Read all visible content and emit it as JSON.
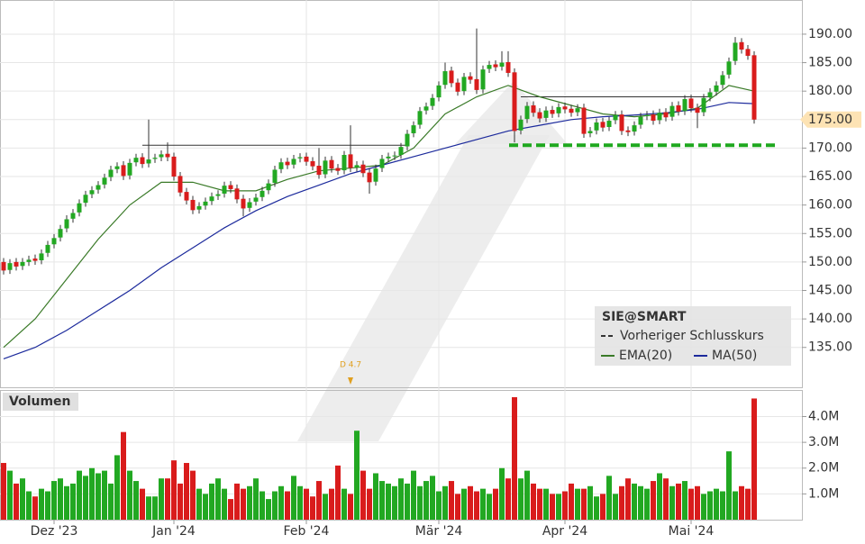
{
  "chart_data": {
    "type": "candlestick",
    "title": "SIE@SMART",
    "categories": [
      null,
      null,
      null,
      null,
      null,
      null,
      null,
      null,
      "Dez '23",
      null,
      null,
      null,
      null,
      null,
      null,
      null,
      null,
      null,
      null,
      null,
      null,
      null,
      null,
      null,
      null,
      null,
      null,
      "Jan '24",
      null,
      null,
      null,
      null,
      null,
      null,
      null,
      null,
      null,
      null,
      null,
      null,
      null,
      null,
      null,
      null,
      null,
      null,
      null,
      null,
      "Feb '24",
      null,
      null,
      null,
      null,
      null,
      null,
      null,
      null,
      null,
      null,
      null,
      null,
      null,
      null,
      null,
      null,
      null,
      null,
      null,
      null,
      "Mär '24",
      null,
      null,
      null,
      null,
      null,
      null,
      null,
      null,
      null,
      null,
      null,
      null,
      null,
      null,
      null,
      null,
      null,
      null,
      null,
      "Apr '24",
      null,
      null,
      null,
      null,
      null,
      null,
      null,
      null,
      null,
      null,
      null,
      null,
      null,
      null,
      null,
      null,
      null,
      null,
      null,
      "Mai '24",
      null,
      null,
      null,
      null,
      null,
      null,
      null,
      null,
      null,
      null
    ],
    "open": [
      150.0,
      148.6,
      150.0,
      149.3,
      150.0,
      150.6,
      150.3,
      151.6,
      153.1,
      154.3,
      155.9,
      157.6,
      158.7,
      160.4,
      161.9,
      162.7,
      163.6,
      164.9,
      166.3,
      167.0,
      165.2,
      167.5,
      168.4,
      167.3,
      168.1,
      168.4,
      169.0,
      168.5,
      165.1,
      162.3,
      160.9,
      159.2,
      159.9,
      160.7,
      161.6,
      162.0,
      163.5,
      162.9,
      161.1,
      159.5,
      160.6,
      161.4,
      162.6,
      163.9,
      166.3,
      167.6,
      167.1,
      168.2,
      168.5,
      167.7,
      166.9,
      165.4,
      167.9,
      166.5,
      166.1,
      168.9,
      166.6,
      167.1,
      165.7,
      164.1,
      166.5,
      168.2,
      168.6,
      168.8,
      170.3,
      172.6,
      174.1,
      176.6,
      177.4,
      178.9,
      181.1,
      183.6,
      181.5,
      180.0,
      182.6,
      182.1,
      180.3,
      183.9,
      184.7,
      184.3,
      185.1,
      183.3,
      173.1,
      175.1,
      177.5,
      176.3,
      175.3,
      176.7,
      176.1,
      177.3,
      176.9,
      176.3,
      177.1,
      172.6,
      173.1,
      174.6,
      173.7,
      174.9,
      175.9,
      173.1,
      172.9,
      174.1,
      175.6,
      175.9,
      174.9,
      176.3,
      175.5,
      177.5,
      176.5,
      178.7,
      177.1,
      176.3,
      178.9,
      179.9,
      181.1,
      182.9,
      185.3,
      188.6,
      187.4,
      186.3
    ],
    "high": [
      150.7,
      150.5,
      150.7,
      150.7,
      151.1,
      151.3,
      152.2,
      153.7,
      154.9,
      156.5,
      158.2,
      159.3,
      161.0,
      162.5,
      163.3,
      164.2,
      165.5,
      166.9,
      167.5,
      167.7,
      168.1,
      169.0,
      169.1,
      175.0,
      169.0,
      169.6,
      171.0,
      169.2,
      165.8,
      163.0,
      161.6,
      160.5,
      161.3,
      162.2,
      162.6,
      164.1,
      164.2,
      163.6,
      161.8,
      161.2,
      162.0,
      163.2,
      164.5,
      166.9,
      168.2,
      168.3,
      168.8,
      169.1,
      169.2,
      168.4,
      170.0,
      168.5,
      168.6,
      167.2,
      169.5,
      174.0,
      167.7,
      167.8,
      166.4,
      167.1,
      168.8,
      169.2,
      169.4,
      170.9,
      173.2,
      174.7,
      177.2,
      178.0,
      179.5,
      181.7,
      185.0,
      184.3,
      182.2,
      183.2,
      183.3,
      191.0,
      184.5,
      185.3,
      185.4,
      187.0,
      187.0,
      184.0,
      175.7,
      178.1,
      178.2,
      177.0,
      177.3,
      177.4,
      177.9,
      178.0,
      177.6,
      177.7,
      177.8,
      173.7,
      175.2,
      175.3,
      175.5,
      176.5,
      176.6,
      173.8,
      174.7,
      176.2,
      176.5,
      176.6,
      176.9,
      177.0,
      178.1,
      178.2,
      179.3,
      179.4,
      177.8,
      179.5,
      180.5,
      181.7,
      183.5,
      185.9,
      189.5,
      189.3,
      188.1,
      187.0
    ],
    "low": [
      147.8,
      147.9,
      148.5,
      148.6,
      149.3,
      149.5,
      149.6,
      150.9,
      152.4,
      153.6,
      155.2,
      156.9,
      158.0,
      159.7,
      161.2,
      162.0,
      162.9,
      164.2,
      165.6,
      164.4,
      164.5,
      166.8,
      166.5,
      166.6,
      167.4,
      167.7,
      167.7,
      164.3,
      161.5,
      160.1,
      158.4,
      158.5,
      159.2,
      160.0,
      160.9,
      161.3,
      162.1,
      160.3,
      158.0,
      158.8,
      159.9,
      160.7,
      161.9,
      163.2,
      165.6,
      166.3,
      166.4,
      167.5,
      166.9,
      166.1,
      164.6,
      164.7,
      165.7,
      165.3,
      165.4,
      165.8,
      165.9,
      164.9,
      162.0,
      163.4,
      165.8,
      167.5,
      167.9,
      168.1,
      169.6,
      171.9,
      173.4,
      175.9,
      176.7,
      178.2,
      180.4,
      180.7,
      179.2,
      179.3,
      181.3,
      179.5,
      179.6,
      183.2,
      183.5,
      183.6,
      182.5,
      171.0,
      172.4,
      174.4,
      175.5,
      174.5,
      174.6,
      175.3,
      175.4,
      176.1,
      175.5,
      175.6,
      171.8,
      171.9,
      172.4,
      172.9,
      173.0,
      174.2,
      172.3,
      172.1,
      172.2,
      173.4,
      174.9,
      174.1,
      174.2,
      174.7,
      174.8,
      175.7,
      175.8,
      176.3,
      173.5,
      175.6,
      178.2,
      179.2,
      180.4,
      182.2,
      184.6,
      186.6,
      185.5,
      174.3
    ],
    "close": [
      148.5,
      149.8,
      149.2,
      150.0,
      150.4,
      150.2,
      151.5,
      153.0,
      154.2,
      155.8,
      157.5,
      158.6,
      160.3,
      161.8,
      162.6,
      163.5,
      164.8,
      166.2,
      166.8,
      165.1,
      167.4,
      168.3,
      167.2,
      168.0,
      168.3,
      168.9,
      168.4,
      165.0,
      162.2,
      160.8,
      159.1,
      159.8,
      160.6,
      161.5,
      161.9,
      163.4,
      162.8,
      161.0,
      159.4,
      160.5,
      161.3,
      162.5,
      163.8,
      166.2,
      167.5,
      167.0,
      168.1,
      168.4,
      167.6,
      166.8,
      165.3,
      167.8,
      166.4,
      166.0,
      168.8,
      166.5,
      167.0,
      165.6,
      164.0,
      166.4,
      168.1,
      168.5,
      168.7,
      170.2,
      172.5,
      174.0,
      176.5,
      177.3,
      178.8,
      181.0,
      183.5,
      181.4,
      179.9,
      182.5,
      182.0,
      180.2,
      183.8,
      184.6,
      184.2,
      185.0,
      183.2,
      173.0,
      175.0,
      177.4,
      176.2,
      175.2,
      176.6,
      176.0,
      177.2,
      176.8,
      176.2,
      177.0,
      172.5,
      173.0,
      174.5,
      173.6,
      174.8,
      175.8,
      173.0,
      172.8,
      174.0,
      175.5,
      175.8,
      174.8,
      176.2,
      175.4,
      177.4,
      176.4,
      178.6,
      177.0,
      176.2,
      178.8,
      179.8,
      181.0,
      182.8,
      185.2,
      188.5,
      187.3,
      186.2,
      175.0
    ],
    "up_color": "#22a822",
    "down_color": "#d91c1c",
    "ylim": [
      128,
      196
    ],
    "yticks": [
      {
        "value": 135,
        "label": "135.00"
      },
      {
        "value": 140,
        "label": "140.00"
      },
      {
        "value": 145,
        "label": "145.00"
      },
      {
        "value": 150,
        "label": "150.00"
      },
      {
        "value": 155,
        "label": "155.00"
      },
      {
        "value": 160,
        "label": "160.00"
      },
      {
        "value": 165,
        "label": "165.00"
      },
      {
        "value": 170,
        "label": "170.00"
      },
      {
        "value": 175,
        "label": "175.00"
      },
      {
        "value": 180,
        "label": "180.00"
      },
      {
        "value": 185,
        "label": "185.00"
      },
      {
        "value": 190,
        "label": "190.00"
      }
    ],
    "current_price": 175,
    "grid": true,
    "previous_close": {
      "name": "Vorheriger Schlusskurs",
      "value": 170.5,
      "color": "#1fa81f"
    },
    "series": [
      {
        "name": "EMA(20)",
        "color": "#3a7a28",
        "x": [
          0,
          5,
          10,
          15,
          20,
          25,
          30,
          35,
          40,
          45,
          50,
          55,
          60,
          65,
          70,
          75,
          80,
          85,
          90,
          95,
          100,
          105,
          110,
          115,
          119
        ],
        "values": [
          135,
          140,
          147,
          154,
          160,
          164,
          164,
          162.5,
          162.5,
          164.5,
          166,
          166.5,
          167,
          170,
          176,
          179,
          181,
          179,
          177.5,
          176,
          175.5,
          176,
          177,
          181,
          180
        ]
      },
      {
        "name": "MA(50)",
        "color": "#1c2a9c",
        "x": [
          0,
          5,
          10,
          15,
          20,
          25,
          30,
          35,
          40,
          45,
          50,
          55,
          60,
          65,
          70,
          75,
          80,
          85,
          90,
          95,
          100,
          105,
          110,
          115,
          119
        ],
        "values": [
          133,
          135,
          138,
          141.5,
          145,
          149,
          152.5,
          156,
          159,
          161.5,
          163.5,
          165.5,
          167,
          168.5,
          170,
          171.5,
          173,
          174,
          175,
          175.5,
          175.8,
          176.2,
          176.8,
          178,
          177.8
        ]
      }
    ],
    "trendlines": [
      {
        "x": [
          22,
          64
        ],
        "y": [
          170.5,
          170.5
        ]
      },
      {
        "x": [
          82,
          112
        ],
        "y": [
          179,
          179
        ]
      }
    ],
    "annotations": [
      {
        "text": "D 4.7",
        "x": 55
      }
    ],
    "volume": {
      "title": "Volumen",
      "values": [
        2.2,
        1.9,
        1.4,
        1.6,
        1.1,
        0.9,
        1.2,
        1.1,
        1.5,
        1.6,
        1.3,
        1.4,
        1.9,
        1.7,
        2.0,
        1.8,
        1.9,
        1.4,
        2.5,
        3.4,
        1.9,
        1.5,
        1.2,
        0.9,
        0.9,
        1.6,
        1.6,
        2.3,
        1.4,
        2.2,
        1.9,
        1.2,
        1.0,
        1.4,
        1.6,
        1.2,
        0.8,
        1.4,
        1.2,
        1.3,
        1.6,
        1.1,
        0.8,
        1.1,
        1.3,
        1.1,
        1.7,
        1.3,
        1.2,
        0.9,
        1.5,
        1.0,
        1.2,
        2.1,
        1.2,
        1.0,
        3.45,
        1.9,
        1.2,
        1.8,
        1.5,
        1.4,
        1.3,
        1.6,
        1.4,
        1.9,
        1.3,
        1.5,
        1.7,
        1.1,
        1.3,
        1.5,
        1.0,
        1.2,
        1.3,
        1.1,
        1.2,
        1.0,
        1.2,
        2.0,
        1.6,
        4.75,
        1.6,
        1.9,
        1.4,
        1.2,
        1.2,
        1.0,
        1.0,
        1.1,
        1.4,
        1.2,
        1.2,
        1.3,
        0.9,
        1.0,
        1.7,
        1.0,
        1.3,
        1.6,
        1.4,
        1.3,
        1.2,
        1.5,
        1.8,
        1.6,
        1.3,
        1.4,
        1.5,
        1.2,
        1.3,
        1.0,
        1.1,
        1.2,
        1.1,
        2.65,
        1.1,
        1.3,
        1.2,
        4.7
      ],
      "ylim": [
        0,
        5.03
      ],
      "yticks": [
        {
          "value": 1,
          "label": "1.0M"
        },
        {
          "value": 2,
          "label": "2.0M"
        },
        {
          "value": 3,
          "label": "3.0M"
        },
        {
          "value": 4,
          "label": "4.0M"
        }
      ]
    }
  }
}
